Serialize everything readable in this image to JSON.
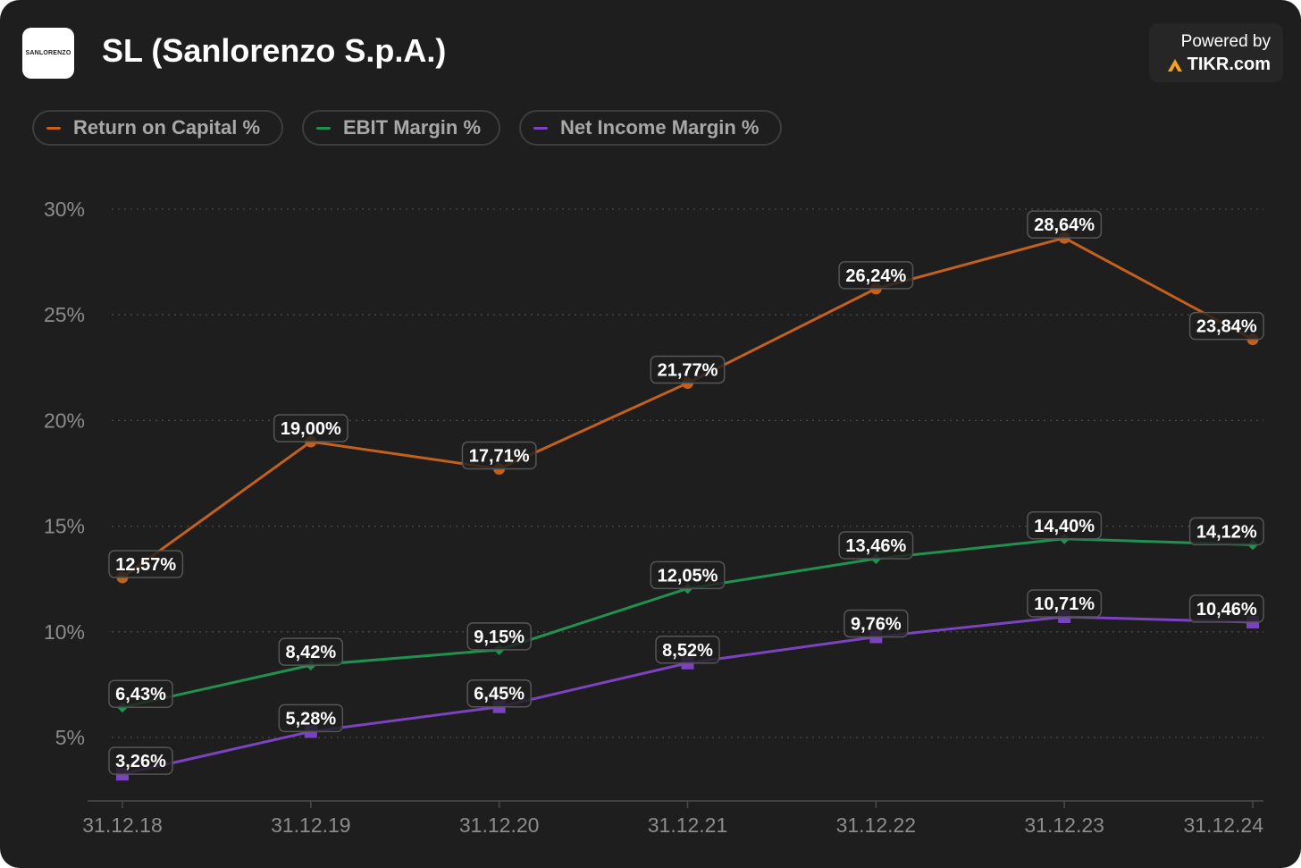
{
  "header": {
    "logo_text": "SANLORENZO",
    "title": "SL (Sanlorenzo S.p.A.)",
    "powered_by": "Powered by",
    "brand": "TIKR.com"
  },
  "colors": {
    "roc": "#c4601d",
    "ebit": "#21914f",
    "net": "#7b43c0",
    "background": "#1e1e1e"
  },
  "chart_data": {
    "type": "line",
    "title": "SL (Sanlorenzo S.p.A.)",
    "xlabel": "",
    "ylabel": "",
    "categories": [
      "31.12.18",
      "31.12.19",
      "31.12.20",
      "31.12.21",
      "31.12.22",
      "31.12.23",
      "31.12.24"
    ],
    "ylim": [
      2,
      30
    ],
    "yticks": [
      5,
      10,
      15,
      20,
      25,
      30
    ],
    "ytick_labels": [
      "5%",
      "10%",
      "15%",
      "20%",
      "25%",
      "30%"
    ],
    "grid": true,
    "legend_position": "top-left",
    "series": [
      {
        "key": "roc",
        "name": "Return on Capital %",
        "marker": "circle",
        "values": [
          12.57,
          19.0,
          17.71,
          21.77,
          26.24,
          28.64,
          23.84
        ],
        "labels": [
          "12,57%",
          "19,00%",
          "17,71%",
          "21,77%",
          "26,24%",
          "28,64%",
          "23,84%"
        ]
      },
      {
        "key": "ebit",
        "name": "EBIT Margin %",
        "marker": "diamond",
        "values": [
          6.43,
          8.42,
          9.15,
          12.05,
          13.46,
          14.4,
          14.12
        ],
        "labels": [
          "6,43%",
          "8,42%",
          "9,15%",
          "12,05%",
          "13,46%",
          "14,40%",
          "14,12%"
        ]
      },
      {
        "key": "net",
        "name": "Net Income Margin %",
        "marker": "square",
        "values": [
          3.26,
          5.28,
          6.45,
          8.52,
          9.76,
          10.71,
          10.46
        ],
        "labels": [
          "3,26%",
          "5,28%",
          "6,45%",
          "8,52%",
          "9,76%",
          "10,71%",
          "10,46%"
        ]
      }
    ]
  }
}
